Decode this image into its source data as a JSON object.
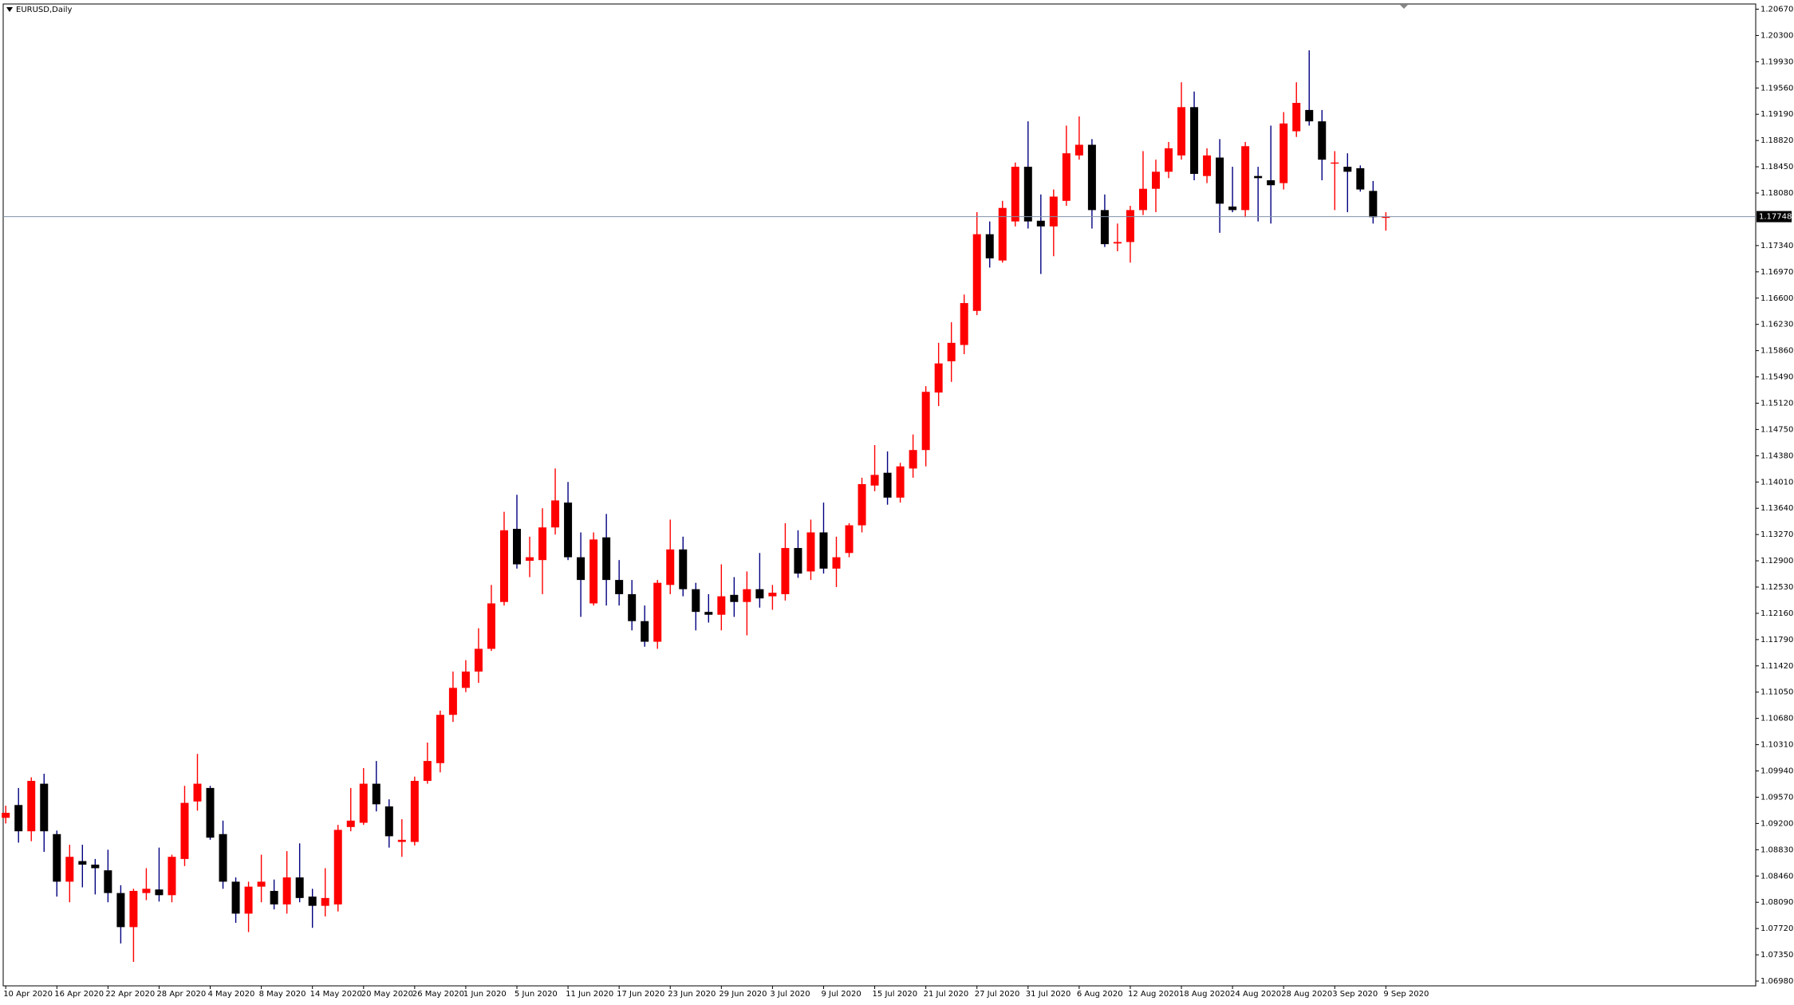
{
  "chart_data": {
    "type": "candlestick",
    "title": "EURUSD,Daily",
    "categories": [
      "10 Apr 2020",
      null,
      null,
      null,
      "16 Apr 2020",
      null,
      null,
      null,
      "22 Apr 2020",
      null,
      null,
      null,
      "28 Apr 2020",
      null,
      null,
      null,
      "4 May 2020",
      null,
      null,
      null,
      "8 May 2020",
      null,
      null,
      null,
      "14 May 2020",
      null,
      null,
      null,
      "20 May 2020",
      null,
      null,
      null,
      "26 May 2020",
      null,
      null,
      null,
      "1 Jun 2020",
      null,
      null,
      null,
      "5 Jun 2020",
      null,
      null,
      null,
      "11 Jun 2020",
      null,
      null,
      null,
      "17 Jun 2020",
      null,
      null,
      null,
      "23 Jun 2020",
      null,
      null,
      null,
      "29 Jun 2020",
      null,
      null,
      null,
      "3 Jul 2020",
      null,
      null,
      null,
      "9 Jul 2020",
      null,
      null,
      null,
      "15 Jul 2020",
      null,
      null,
      null,
      "21 Jul 2020",
      null,
      null,
      null,
      "27 Jul 2020",
      null,
      null,
      null,
      "31 Jul 2020",
      null,
      null,
      null,
      "6 Aug 2020",
      null,
      null,
      null,
      "12 Aug 2020",
      null,
      null,
      null,
      "18 Aug 2020",
      null,
      null,
      null,
      "24 Aug 2020",
      null,
      null,
      null,
      "28 Aug 2020",
      null,
      null,
      null,
      "3 Sep 2020",
      null,
      null,
      null,
      "9 Sep 2020"
    ],
    "open": [
      1.0928,
      1.0946,
      1.0909,
      1.0976,
      1.0905,
      1.0838,
      1.0867,
      1.0862,
      1.0854,
      1.0822,
      1.0774,
      1.0822,
      1.0827,
      1.0819,
      1.087,
      1.0951,
      1.097,
      1.0905,
      1.0838,
      1.0793,
      1.0831,
      1.0825,
      1.0806,
      1.0844,
      1.0817,
      1.0804,
      1.0806,
      1.0915,
      1.0921,
      1.0976,
      1.0944,
      1.0894,
      1.0894,
      1.098,
      1.1005,
      1.1073,
      1.1111,
      1.1134,
      1.1166,
      1.1232,
      1.1335,
      1.129,
      1.1291,
      1.1337,
      1.1372,
      1.1295,
      1.123,
      1.1323,
      1.1263,
      1.1243,
      1.1205,
      1.1176,
      1.1256,
      1.1306,
      1.125,
      1.1218,
      1.1214,
      1.1242,
      1.1232,
      1.125,
      1.124,
      1.1243,
      1.1308,
      1.1275,
      1.133,
      1.1279,
      1.1301,
      1.134,
      1.1396,
      1.1414,
      1.1379,
      1.142,
      1.1446,
      1.1527,
      1.1571,
      1.1594,
      1.1642,
      1.175,
      1.1713,
      1.1768,
      1.1845,
      1.1769,
      1.1761,
      1.1797,
      1.1861,
      1.1876,
      1.1784,
      1.1737,
      1.1739,
      1.1784,
      1.1814,
      1.1838,
      1.1861,
      1.1929,
      1.1832,
      1.1858,
      1.1789,
      1.1784,
      1.1832,
      1.1826,
      1.1822,
      1.1895,
      1.1925,
      1.1909,
      1.185,
      1.1845,
      1.1843,
      1.1811,
      1.1773
    ],
    "high": [
      1.0945,
      1.097,
      1.0985,
      1.099,
      1.091,
      1.089,
      1.089,
      1.087,
      1.0883,
      1.0833,
      1.0828,
      1.0857,
      1.0886,
      1.0876,
      1.0973,
      1.1018,
      1.0973,
      1.0924,
      1.0844,
      1.0838,
      1.0876,
      1.0841,
      1.0881,
      1.0892,
      1.0828,
      1.0857,
      1.0918,
      1.097,
      1.0998,
      1.1008,
      1.0954,
      1.0926,
      1.0986,
      1.1034,
      1.1079,
      1.1134,
      1.115,
      1.1195,
      1.1256,
      1.1359,
      1.1383,
      1.1324,
      1.1364,
      1.142,
      1.1401,
      1.133,
      1.133,
      1.1356,
      1.1291,
      1.1263,
      1.1227,
      1.1263,
      1.1348,
      1.1324,
      1.1259,
      1.1243,
      1.1285,
      1.1267,
      1.1275,
      1.1301,
      1.1256,
      1.1343,
      1.1333,
      1.1348,
      1.1372,
      1.1324,
      1.1343,
      1.1407,
      1.1453,
      1.1444,
      1.1428,
      1.1468,
      1.1536,
      1.1597,
      1.1626,
      1.1665,
      1.1781,
      1.1768,
      1.1797,
      1.1851,
      1.1909,
      1.1806,
      1.1813,
      1.1903,
      1.1916,
      1.1884,
      1.1806,
      1.1765,
      1.179,
      1.1867,
      1.1855,
      1.188,
      1.1964,
      1.1951,
      1.1871,
      1.1884,
      1.1845,
      1.188,
      1.1845,
      1.1903,
      1.1922,
      1.1964,
      1.2009,
      1.1925,
      1.1867,
      1.1864,
      1.1847,
      1.1825,
      1.1781
    ],
    "low": [
      1.092,
      1.0893,
      1.0895,
      1.088,
      1.0817,
      1.0809,
      1.083,
      1.082,
      1.0809,
      1.0751,
      1.0725,
      1.0812,
      1.081,
      1.0809,
      1.086,
      1.0938,
      1.0897,
      1.0828,
      1.078,
      1.0767,
      1.0809,
      1.0799,
      1.0793,
      1.0809,
      1.0773,
      1.0789,
      1.0796,
      1.0909,
      1.0918,
      1.0937,
      1.0886,
      1.0873,
      1.0889,
      1.0976,
      1.0992,
      1.1063,
      1.1105,
      1.1118,
      1.1163,
      1.1227,
      1.1279,
      1.1267,
      1.1243,
      1.1327,
      1.1291,
      1.1211,
      1.1227,
      1.1227,
      1.1227,
      1.1192,
      1.1169,
      1.1166,
      1.1243,
      1.124,
      1.1192,
      1.1203,
      1.1192,
      1.1211,
      1.1185,
      1.1224,
      1.1221,
      1.1234,
      1.1266,
      1.1263,
      1.1272,
      1.1253,
      1.1295,
      1.133,
      1.1388,
      1.1369,
      1.1372,
      1.1407,
      1.1423,
      1.1508,
      1.1542,
      1.1581,
      1.1636,
      1.1703,
      1.171,
      1.1761,
      1.1758,
      1.1694,
      1.1719,
      1.179,
      1.1855,
      1.1758,
      1.1732,
      1.1726,
      1.171,
      1.1777,
      1.1781,
      1.1829,
      1.1855,
      1.1826,
      1.1822,
      1.1752,
      1.1781,
      1.1774,
      1.1768,
      1.1765,
      1.1813,
      1.1887,
      1.1903,
      1.1826,
      1.1784,
      1.1781,
      1.181,
      1.1765,
      1.1755
    ],
    "close": [
      1.0935,
      1.0909,
      1.098,
      1.0909,
      1.0838,
      1.0873,
      1.0862,
      1.0857,
      1.0822,
      1.0774,
      1.0825,
      1.0828,
      1.0819,
      1.0873,
      1.0949,
      1.0976,
      1.09,
      1.0838,
      1.0793,
      1.0831,
      1.0838,
      1.0806,
      1.0844,
      1.0815,
      1.0804,
      1.0815,
      1.0911,
      1.0924,
      1.0976,
      1.0947,
      1.0902,
      1.0897,
      1.098,
      1.1008,
      1.1073,
      1.1111,
      1.1134,
      1.1166,
      1.123,
      1.1333,
      1.1285,
      1.1295,
      1.1337,
      1.1375,
      1.1295,
      1.1263,
      1.132,
      1.1263,
      1.1243,
      1.1205,
      1.1176,
      1.1259,
      1.1306,
      1.125,
      1.1218,
      1.1214,
      1.124,
      1.1232,
      1.125,
      1.1237,
      1.1245,
      1.1308,
      1.1272,
      1.133,
      1.1279,
      1.1295,
      1.134,
      1.1398,
      1.1411,
      1.1379,
      1.1423,
      1.1446,
      1.1528,
      1.1568,
      1.1597,
      1.1653,
      1.175,
      1.1716,
      1.1787,
      1.1845,
      1.1768,
      1.1761,
      1.1803,
      1.1864,
      1.1876,
      1.1784,
      1.1736,
      1.1739,
      1.1784,
      1.1814,
      1.1838,
      1.1871,
      1.1929,
      1.1835,
      1.1861,
      1.1793,
      1.1784,
      1.1874,
      1.1829,
      1.1819,
      1.1906,
      1.1935,
      1.1909,
      1.1855,
      1.1851,
      1.1838,
      1.1813,
      1.1774,
      1.17748
    ],
    "up_color": "#ff0000",
    "down_color": "#000000",
    "up_wick_color": "#ff0000",
    "down_wick_color": "#000080",
    "current_price": 1.17748,
    "current_price_color": "#8090a8",
    "ylim": [
      1.0698,
      1.2067
    ],
    "yticks": [
      {
        "value": 1.0698,
        "label": "1.06980"
      },
      {
        "value": 1.0735,
        "label": "1.07350"
      },
      {
        "value": 1.0772,
        "label": "1.07720"
      },
      {
        "value": 1.0809,
        "label": "1.08090"
      },
      {
        "value": 1.0846,
        "label": "1.08460"
      },
      {
        "value": 1.0883,
        "label": "1.08830"
      },
      {
        "value": 1.092,
        "label": "1.09200"
      },
      {
        "value": 1.0957,
        "label": "1.09570"
      },
      {
        "value": 1.0994,
        "label": "1.09940"
      },
      {
        "value": 1.1031,
        "label": "1.10310"
      },
      {
        "value": 1.1068,
        "label": "1.10680"
      },
      {
        "value": 1.1105,
        "label": "1.11050"
      },
      {
        "value": 1.1142,
        "label": "1.11420"
      },
      {
        "value": 1.1179,
        "label": "1.11790"
      },
      {
        "value": 1.1216,
        "label": "1.12160"
      },
      {
        "value": 1.1253,
        "label": "1.12530"
      },
      {
        "value": 1.129,
        "label": "1.12900"
      },
      {
        "value": 1.1327,
        "label": "1.13270"
      },
      {
        "value": 1.1364,
        "label": "1.13640"
      },
      {
        "value": 1.1401,
        "label": "1.14010"
      },
      {
        "value": 1.1438,
        "label": "1.14380"
      },
      {
        "value": 1.1475,
        "label": "1.14750"
      },
      {
        "value": 1.1512,
        "label": "1.15120"
      },
      {
        "value": 1.1549,
        "label": "1.15490"
      },
      {
        "value": 1.1586,
        "label": "1.15860"
      },
      {
        "value": 1.1623,
        "label": "1.16230"
      },
      {
        "value": 1.166,
        "label": "1.16600"
      },
      {
        "value": 1.1697,
        "label": "1.16970"
      },
      {
        "value": 1.1734,
        "label": "1.17340"
      },
      {
        "value": 1.1808,
        "label": "1.18080"
      },
      {
        "value": 1.1845,
        "label": "1.18450"
      },
      {
        "value": 1.1882,
        "label": "1.18820"
      },
      {
        "value": 1.1919,
        "label": "1.19190"
      },
      {
        "value": 1.1956,
        "label": "1.19560"
      },
      {
        "value": 1.1993,
        "label": "1.19930"
      },
      {
        "value": 1.203,
        "label": "1.20300"
      },
      {
        "value": 1.2067,
        "label": "1.20670"
      }
    ],
    "grid": false
  }
}
